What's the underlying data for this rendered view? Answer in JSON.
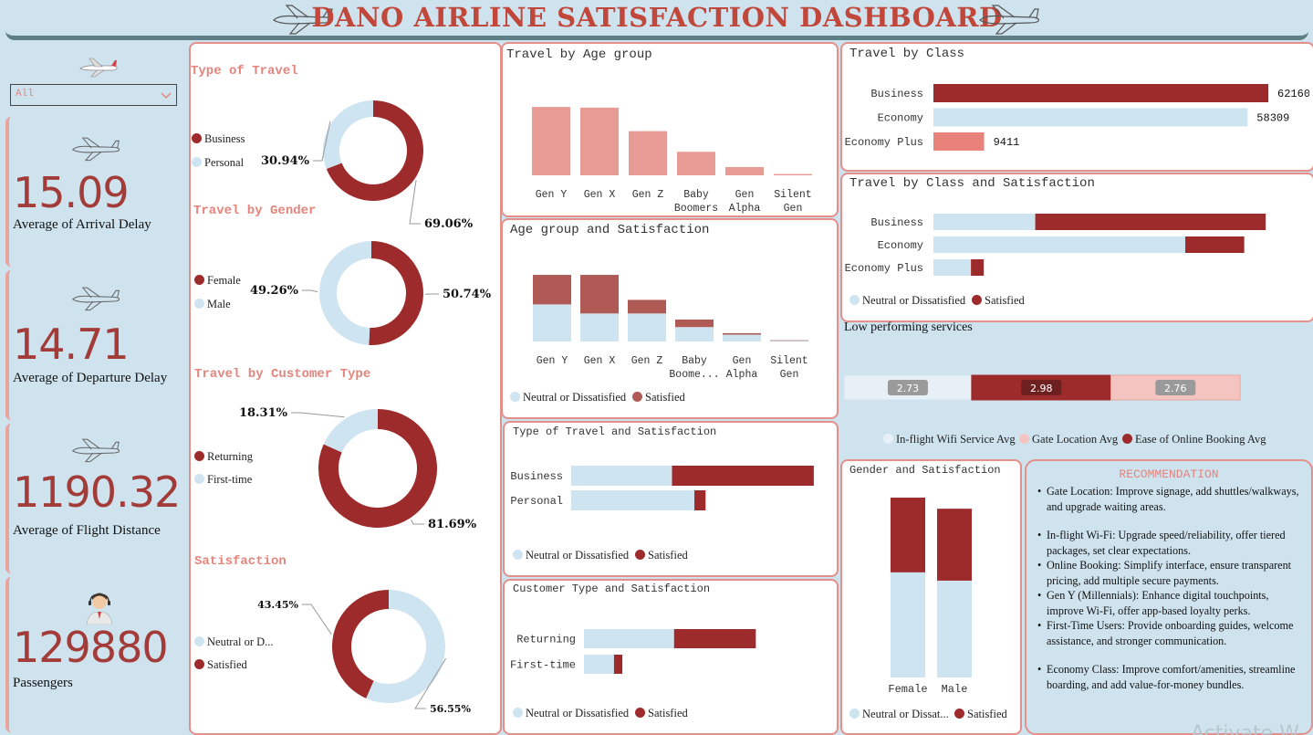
{
  "header": {
    "title": "DANO AIRLINE SATISFACTION DASHBOARD"
  },
  "colors": {
    "dark_red": "#9e2b2b",
    "light_blue": "#cfe4f1",
    "salmon": "#e89a94",
    "brand_title": "#c0473a",
    "kpi_value": "#a33c38"
  },
  "filter": {
    "value": "All"
  },
  "kpis": [
    {
      "value": "15.09",
      "label": "Average of Arrival Delay",
      "icon": "airplane-icon"
    },
    {
      "value": "14.71",
      "label": "Average of Departure Delay",
      "icon": "airplane-icon"
    },
    {
      "value": "1190.32",
      "label": "Average of Flight Distance",
      "icon": "airplane-icon"
    },
    {
      "value": "129880",
      "label": "Passengers",
      "icon": "pilot-avatar-icon"
    }
  ],
  "donuts": {
    "type_of_travel": {
      "title": "Type of Travel",
      "legend": [
        "Business",
        "Personal"
      ],
      "slices": [
        {
          "name": "Business",
          "value": 69.06,
          "label": "69.06%"
        },
        {
          "name": "Personal",
          "value": 30.94,
          "label": "30.94%"
        }
      ]
    },
    "gender": {
      "title": "Travel by Gender",
      "legend": [
        "Female",
        "Male"
      ],
      "slices": [
        {
          "name": "Female",
          "value": 50.74,
          "label": "50.74%"
        },
        {
          "name": "Male",
          "value": 49.26,
          "label": "49.26%"
        }
      ]
    },
    "customer_type": {
      "title": "Travel by Customer Type",
      "legend": [
        "Returning",
        "First-time"
      ],
      "slices": [
        {
          "name": "Returning",
          "value": 81.69,
          "label": "81.69%"
        },
        {
          "name": "First-time",
          "value": 18.31,
          "label": "18.31%"
        }
      ]
    },
    "satisfaction": {
      "title": "Satisfaction",
      "legend": [
        "Neutral or D...",
        "Satisfied"
      ],
      "slices": [
        {
          "name": "Neutral or Dissatisfied",
          "value": 56.55,
          "label": "56.55%"
        },
        {
          "name": "Satisfied",
          "value": 43.45,
          "label": "43.45%"
        }
      ]
    }
  },
  "chart_data": [
    {
      "id": "age_group",
      "type": "bar",
      "title": "Travel by Age group",
      "categories": [
        "Gen Y",
        "Gen X",
        "Gen Z",
        "Baby Boomers",
        "Gen Alpha",
        "Silent Gen"
      ],
      "category_lines": [
        [
          "Gen Y"
        ],
        [
          "Gen X"
        ],
        [
          "Gen Z"
        ],
        [
          "Baby",
          "Boomers"
        ],
        [
          "Gen",
          "Alpha"
        ],
        [
          "Silent",
          "Gen"
        ]
      ],
      "values": [
        48000,
        47500,
        31000,
        16500,
        5800,
        900
      ],
      "ylim": [
        0,
        50000
      ]
    },
    {
      "id": "age_satisfaction",
      "type": "bar",
      "title": "Age group and Satisfaction",
      "categories": [
        "Gen Y",
        "Gen X",
        "Gen Z",
        "Baby Boomers",
        "Gen Alpha",
        "Silent Gen"
      ],
      "category_lines": [
        [
          "Gen Y"
        ],
        [
          "Gen X"
        ],
        [
          "Gen Z"
        ],
        [
          "Baby",
          "Boome..."
        ],
        [
          "Gen",
          "Alpha"
        ],
        [
          "Silent",
          "Gen"
        ]
      ],
      "series": [
        {
          "name": "Neutral or Dissatisfied",
          "values": [
            24500,
            18500,
            18500,
            9500,
            4500,
            600
          ]
        },
        {
          "name": "Satisfied",
          "values": [
            19500,
            25500,
            9000,
            5000,
            1000,
            200
          ]
        }
      ],
      "legend": [
        "Neutral or Dissatisfied",
        "Satisfied"
      ],
      "ylim": [
        0,
        50000
      ]
    },
    {
      "id": "class",
      "type": "bar",
      "orientation": "horizontal",
      "title": "Travel by Class",
      "categories": [
        "Business",
        "Economy",
        "Economy Plus"
      ],
      "values": [
        62160,
        58309,
        9411
      ],
      "value_labels": [
        "62160",
        "58309",
        "9411"
      ],
      "xlim": [
        0,
        63000
      ]
    },
    {
      "id": "class_satisfaction",
      "type": "bar",
      "orientation": "horizontal",
      "title": "Travel by Class and Satisfaction",
      "categories": [
        "Business",
        "Economy",
        "Economy Plus"
      ],
      "series": [
        {
          "name": "Neutral or Dissatisfied",
          "values": [
            19000,
            47000,
            7000
          ]
        },
        {
          "name": "Satisfied",
          "values": [
            43000,
            11000,
            2400
          ]
        }
      ],
      "legend": [
        "Neutral or Dissatisfied",
        "Satisfied"
      ],
      "xlim": [
        0,
        63000
      ]
    },
    {
      "id": "low_services",
      "type": "bar",
      "orientation": "horizontal",
      "title": "Low performing services",
      "categories": [
        "In-flight Wifi Service Avg",
        "Gate Location Avg",
        "Ease of Online Booking Avg"
      ],
      "values": [
        2.73,
        2.76,
        2.98
      ],
      "value_labels": [
        "2.73",
        "2.76",
        "2.98"
      ],
      "legend": [
        "In-flight Wifi Service Avg",
        "Gate Location Avg",
        "Ease of Online Booking Avg"
      ]
    },
    {
      "id": "travel_type_satisfaction",
      "type": "bar",
      "orientation": "horizontal",
      "title": "Type of Travel and Satisfaction",
      "categories": [
        "Business",
        "Personal"
      ],
      "series": [
        {
          "name": "Neutral or Dissatisfied",
          "values": [
            27000,
            33000
          ]
        },
        {
          "name": "Satisfied",
          "values": [
            38000,
            3000
          ]
        }
      ],
      "legend": [
        "Neutral or Dissatisfied",
        "Satisfied"
      ],
      "xlim": [
        0,
        66000
      ]
    },
    {
      "id": "customer_satisfaction",
      "type": "bar",
      "orientation": "horizontal",
      "title": "Customer Type and Satisfaction",
      "categories": [
        "Returning",
        "First-time"
      ],
      "series": [
        {
          "name": "Neutral or Dissatisfied",
          "values": [
            54000,
            18000
          ]
        },
        {
          "name": "Satisfied",
          "values": [
            49000,
            5000
          ]
        }
      ],
      "legend": [
        "Neutral or Dissatisfied",
        "Satisfied"
      ],
      "xlim": [
        0,
        105000
      ]
    },
    {
      "id": "gender_satisfaction",
      "type": "bar",
      "title": "Gender and Satisfaction",
      "categories": [
        "Female",
        "Male"
      ],
      "series": [
        {
          "name": "Neutral or Dissatisfied",
          "values": [
            38000,
            35000
          ]
        },
        {
          "name": "Satisfied",
          "values": [
            27000,
            26000
          ]
        }
      ],
      "legend": [
        "Neutral or Dissat...",
        "Satisfied"
      ],
      "ylim": [
        0,
        66000
      ]
    }
  ],
  "recommendation": {
    "title": "RECOMMENDATION",
    "items": [
      "Gate Location: Improve signage, add shuttles/walkways, and upgrade waiting areas.",
      "In-flight Wi-Fi: Upgrade speed/reliability, offer tiered packages, set clear expectations.",
      "Online Booking: Simplify interface, ensure transparent pricing, add multiple secure payments.",
      "Gen Y (Millennials): Enhance digital touchpoints, improve Wi-Fi, offer app-based loyalty perks.",
      "First-Time Users: Provide onboarding guides, welcome assistance, and stronger communication.",
      "Economy Class: Improve comfort/amenities, streamline boarding, and add value-for-money bundles."
    ]
  },
  "watermark": "Activate W"
}
